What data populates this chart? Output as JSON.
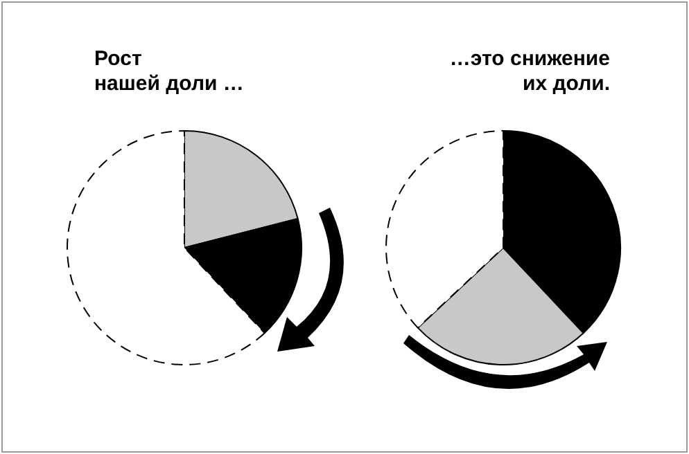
{
  "chart_data": [
    {
      "type": "pie",
      "title": "Рост\nнашей доли …",
      "categories": [
        null,
        null,
        null
      ],
      "values": [
        21,
        17,
        62
      ],
      "colors": [
        "#c8c8c8",
        "#000000",
        "#ffffff"
      ]
    },
    {
      "type": "pie",
      "title": "…это снижение\nих доли.",
      "categories": [
        null,
        null,
        null
      ],
      "values": [
        38,
        25,
        37
      ],
      "colors": [
        "#000000",
        "#c8c8c8",
        "#ffffff"
      ]
    }
  ]
}
